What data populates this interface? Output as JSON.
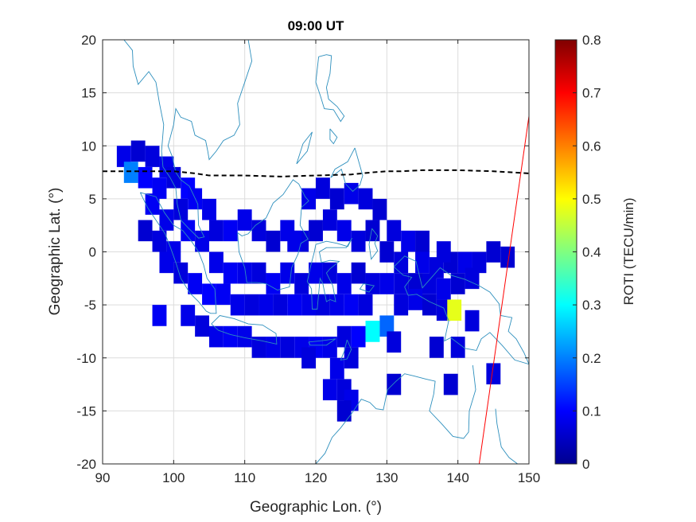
{
  "chart_data": {
    "type": "heatmap",
    "title": "09:00 UT",
    "xlabel": "Geographic Lon. (°)",
    "ylabel": "Geographic Lat. (°)",
    "xlim": [
      90,
      150
    ],
    "ylim": [
      -20,
      20
    ],
    "xticks": [
      "90",
      "100",
      "110",
      "120",
      "130",
      "140",
      "150"
    ],
    "yticks": [
      "-20",
      "-15",
      "-10",
      "-5",
      "0",
      "5",
      "10",
      "15",
      "20"
    ],
    "grid": true,
    "colorbar": {
      "label": "ROTI (TECU/min)",
      "range": [
        0,
        0.8
      ],
      "ticks": [
        "0",
        "0.1",
        "0.2",
        "0.3",
        "0.4",
        "0.5",
        "0.6",
        "0.7",
        "0.8"
      ],
      "colormap": [
        "#00008f",
        "#0000ff",
        "#0080ff",
        "#00ffff",
        "#80ff80",
        "#ffff00",
        "#ff8000",
        "#ff0000",
        "#800000"
      ]
    },
    "magnetic_equator": {
      "style": "dashed",
      "color": "#000000",
      "points": [
        [
          90,
          7.6
        ],
        [
          100,
          7.6
        ],
        [
          103,
          7.4
        ],
        [
          105,
          7.2
        ],
        [
          110,
          7.2
        ],
        [
          115,
          7.1
        ],
        [
          120,
          7.2
        ],
        [
          125,
          7.3
        ],
        [
          128,
          7.5
        ],
        [
          130,
          7.6
        ],
        [
          132,
          7.6
        ],
        [
          135,
          7.7
        ],
        [
          140,
          7.7
        ],
        [
          145,
          7.6
        ],
        [
          150,
          7.4
        ]
      ]
    },
    "red_line": {
      "color": "#ff0000",
      "points": [
        [
          143,
          -20
        ],
        [
          150,
          12.8
        ]
      ]
    },
    "cells": [
      [
        93,
        9,
        0.08
      ],
      [
        95,
        9.5,
        0.06
      ],
      [
        97,
        9,
        0.07
      ],
      [
        99,
        8,
        0.08
      ],
      [
        94,
        7.5,
        0.2
      ],
      [
        96,
        7,
        0.1
      ],
      [
        98,
        6,
        0.09
      ],
      [
        100,
        7,
        0.07
      ],
      [
        102,
        6,
        0.1
      ],
      [
        103,
        5,
        0.09
      ],
      [
        105,
        4,
        0.08
      ],
      [
        101,
        4,
        0.07
      ],
      [
        99,
        3,
        0.08
      ],
      [
        97,
        4.5,
        0.09
      ],
      [
        96,
        2,
        0.06
      ],
      [
        98,
        1,
        0.07
      ],
      [
        100,
        0,
        0.08
      ],
      [
        102,
        2,
        0.09
      ],
      [
        104,
        1,
        0.08
      ],
      [
        106,
        2,
        0.07
      ],
      [
        108,
        2,
        0.09
      ],
      [
        110,
        3,
        0.08
      ],
      [
        112,
        2,
        0.07
      ],
      [
        114,
        1,
        0.06
      ],
      [
        116,
        2,
        0.08
      ],
      [
        118,
        1,
        0.07
      ],
      [
        120,
        2,
        0.06
      ],
      [
        122,
        3,
        0.07
      ],
      [
        124,
        2,
        0.08
      ],
      [
        126,
        1,
        0.07
      ],
      [
        128,
        2,
        0.06
      ],
      [
        119,
        5,
        0.08
      ],
      [
        121,
        6,
        0.07
      ],
      [
        123,
        5,
        0.06
      ],
      [
        125,
        5.5,
        0.08
      ],
      [
        127,
        5,
        0.07
      ],
      [
        129,
        4,
        0.06
      ],
      [
        131,
        2,
        0.07
      ],
      [
        133,
        1,
        0.08
      ],
      [
        130,
        0,
        0.06
      ],
      [
        132,
        -1,
        0.07
      ],
      [
        135,
        -1,
        0.08
      ],
      [
        137,
        -1.5,
        0.07
      ],
      [
        139,
        -1,
        0.06
      ],
      [
        141,
        -1,
        0.08
      ],
      [
        143,
        -1,
        0.07
      ],
      [
        145,
        0,
        0.06
      ],
      [
        135,
        1,
        0.06
      ],
      [
        138,
        0,
        0.07
      ],
      [
        99,
        -1,
        0.08
      ],
      [
        101,
        -2,
        0.07
      ],
      [
        103,
        -3,
        0.09
      ],
      [
        105,
        -4,
        0.1
      ],
      [
        107,
        -4,
        0.09
      ],
      [
        109,
        -5,
        0.08
      ],
      [
        111,
        -5,
        0.07
      ],
      [
        113,
        -5,
        0.08
      ],
      [
        115,
        -5,
        0.07
      ],
      [
        117,
        -5,
        0.09
      ],
      [
        119,
        -5,
        0.08
      ],
      [
        121,
        -5,
        0.07
      ],
      [
        123,
        -5,
        0.08
      ],
      [
        125,
        -5,
        0.09
      ],
      [
        127,
        -5,
        0.07
      ],
      [
        106,
        -1,
        0.08
      ],
      [
        108,
        -2,
        0.09
      ],
      [
        110,
        -2,
        0.08
      ],
      [
        112,
        -2,
        0.07
      ],
      [
        114,
        -3,
        0.09
      ],
      [
        116,
        -2,
        0.08
      ],
      [
        118,
        -3,
        0.07
      ],
      [
        120,
        -2,
        0.08
      ],
      [
        122,
        -2,
        0.07
      ],
      [
        124,
        -3,
        0.08
      ],
      [
        126,
        -2,
        0.06
      ],
      [
        128,
        -3,
        0.07
      ],
      [
        130,
        -3,
        0.08
      ],
      [
        132,
        -3,
        0.07
      ],
      [
        134,
        -3,
        0.06
      ],
      [
        136,
        -3,
        0.07
      ],
      [
        138,
        -3.5,
        0.08
      ],
      [
        140,
        -3,
        0.06
      ],
      [
        142,
        -2.5,
        0.07
      ],
      [
        102,
        -6,
        0.08
      ],
      [
        104,
        -7,
        0.07
      ],
      [
        106,
        -8,
        0.08
      ],
      [
        108,
        -8,
        0.09
      ],
      [
        110,
        -8,
        0.08
      ],
      [
        112,
        -9,
        0.07
      ],
      [
        114,
        -9,
        0.08
      ],
      [
        116,
        -9,
        0.07
      ],
      [
        118,
        -9,
        0.08
      ],
      [
        120,
        -9,
        0.09
      ],
      [
        122,
        -9,
        0.08
      ],
      [
        124,
        -8,
        0.07
      ],
      [
        126,
        -8,
        0.1
      ],
      [
        128,
        -7.5,
        0.3
      ],
      [
        125,
        -10,
        0.07
      ],
      [
        123,
        -11,
        0.08
      ],
      [
        119,
        -10,
        0.07
      ],
      [
        130,
        -7,
        0.18
      ],
      [
        132,
        -5,
        0.07
      ],
      [
        134,
        -4.5,
        0.08
      ],
      [
        136,
        -5,
        0.06
      ],
      [
        138,
        -5.5,
        0.07
      ],
      [
        139.5,
        -5.5,
        0.48
      ],
      [
        142,
        -6.5,
        0.07
      ],
      [
        98,
        -6,
        0.09
      ],
      [
        131,
        -8.5,
        0.07
      ],
      [
        131,
        -12.5,
        0.06
      ],
      [
        122,
        -13,
        0.08
      ],
      [
        124,
        -13,
        0.07
      ],
      [
        125,
        -14,
        0.08
      ],
      [
        124,
        -15,
        0.06
      ],
      [
        137,
        -9,
        0.06
      ],
      [
        140,
        -9,
        0.07
      ],
      [
        139,
        -12.5,
        0.06
      ],
      [
        145,
        -11.5,
        0.07
      ],
      [
        147,
        -0.5,
        0.06
      ],
      [
        117,
        1,
        0.08
      ]
    ]
  },
  "coastlines": [
    [
      [
        110.5,
        20
      ],
      [
        111,
        18
      ],
      [
        110,
        16
      ],
      [
        109,
        14
      ],
      [
        109.3,
        12
      ],
      [
        108.5,
        11
      ],
      [
        107,
        10.5
      ],
      [
        106,
        9.5
      ],
      [
        105,
        8.7
      ],
      [
        104.8,
        9.5
      ],
      [
        104.5,
        10.5
      ],
      [
        103,
        11
      ],
      [
        102.5,
        12.3
      ],
      [
        101,
        12.7
      ],
      [
        100.3,
        13.5
      ],
      [
        100,
        12
      ],
      [
        99.2,
        10
      ],
      [
        99.8,
        9
      ],
      [
        100.3,
        7.5
      ],
      [
        101,
        6.8
      ],
      [
        102.2,
        6.2
      ],
      [
        103.4,
        4.5
      ],
      [
        103.5,
        2.5
      ],
      [
        104.3,
        1.4
      ],
      [
        103.5,
        1.3
      ],
      [
        102,
        2.3
      ],
      [
        101,
        3
      ],
      [
        100.5,
        4.5
      ],
      [
        100.3,
        6
      ],
      [
        99.5,
        7
      ],
      [
        98.5,
        8
      ],
      [
        98.3,
        9.5
      ],
      [
        98.6,
        12
      ],
      [
        98,
        14
      ],
      [
        97.5,
        16
      ],
      [
        96.5,
        17
      ],
      [
        95,
        15.8
      ],
      [
        94.3,
        17.5
      ],
      [
        94.2,
        19
      ],
      [
        93,
        20
      ]
    ],
    [
      [
        95.3,
        5.6
      ],
      [
        97.5,
        5.2
      ],
      [
        98.7,
        3.7
      ],
      [
        100,
        2.5
      ],
      [
        101.3,
        2
      ],
      [
        102.5,
        1
      ],
      [
        103.5,
        0
      ],
      [
        104.2,
        -1.2
      ],
      [
        104.7,
        -2.5
      ],
      [
        105.8,
        -3.5
      ],
      [
        106,
        -5.8
      ],
      [
        105.2,
        -5.8
      ],
      [
        104.6,
        -5.6
      ],
      [
        103.5,
        -4.7
      ],
      [
        102.3,
        -3.9
      ],
      [
        101,
        -2.5
      ],
      [
        100.3,
        -1
      ],
      [
        99.5,
        0.5
      ],
      [
        98.8,
        1.7
      ],
      [
        97.5,
        3
      ],
      [
        96.3,
        4.2
      ],
      [
        95.3,
        5.6
      ]
    ],
    [
      [
        105.3,
        -6.8
      ],
      [
        106.5,
        -6
      ],
      [
        108.5,
        -6.3
      ],
      [
        110.5,
        -6.8
      ],
      [
        112.5,
        -6.9
      ],
      [
        114.4,
        -7.7
      ],
      [
        114.5,
        -8.7
      ],
      [
        112.5,
        -8.4
      ],
      [
        110,
        -8.1
      ],
      [
        108,
        -7.8
      ],
      [
        106.3,
        -7.4
      ],
      [
        105.3,
        -6.8
      ]
    ],
    [
      [
        109,
        1.8
      ],
      [
        109.6,
        1.5
      ],
      [
        110.5,
        1.7
      ],
      [
        111.5,
        2.5
      ],
      [
        113,
        3.2
      ],
      [
        114,
        4.6
      ],
      [
        115.4,
        5.4
      ],
      [
        116.8,
        6.8
      ],
      [
        117.6,
        6.4
      ],
      [
        118.5,
        5.2
      ],
      [
        119,
        4.8
      ],
      [
        118,
        4.2
      ],
      [
        117.8,
        2.5
      ],
      [
        118.9,
        1.2
      ],
      [
        117.9,
        0.8
      ],
      [
        117.5,
        -0.2
      ],
      [
        116.6,
        -1.5
      ],
      [
        116.3,
        -3.3
      ],
      [
        114.6,
        -3.6
      ],
      [
        113,
        -3
      ],
      [
        111.7,
        -2.9
      ],
      [
        110.3,
        -2.9
      ],
      [
        110,
        -1.5
      ],
      [
        109.2,
        0
      ],
      [
        109,
        1.8
      ]
    ],
    [
      [
        120,
        0.7
      ],
      [
        121.5,
        1
      ],
      [
        123,
        0.8
      ],
      [
        124.5,
        0.5
      ],
      [
        125.1,
        1.3
      ],
      [
        124.3,
        0.4
      ],
      [
        122.5,
        0.4
      ],
      [
        121.5,
        0.4
      ],
      [
        120.5,
        0
      ],
      [
        120.8,
        -1
      ],
      [
        122,
        -0.8
      ],
      [
        123.3,
        -0.9
      ],
      [
        122,
        -1.6
      ],
      [
        121.5,
        -2
      ],
      [
        122.4,
        -3.2
      ],
      [
        122.8,
        -4.7
      ],
      [
        122,
        -4.5
      ],
      [
        121.5,
        -4.7
      ],
      [
        121,
        -3
      ],
      [
        120.6,
        -2.5
      ],
      [
        120.2,
        -5.4
      ],
      [
        119.5,
        -5.4
      ],
      [
        119.4,
        -3.5
      ],
      [
        118.8,
        -2.8
      ],
      [
        119.3,
        -1.3
      ],
      [
        119.8,
        0
      ],
      [
        120,
        0.7
      ]
    ],
    [
      [
        131,
        -1.4
      ],
      [
        132.5,
        -0.4
      ],
      [
        134.1,
        -0.9
      ],
      [
        135,
        -3.4
      ],
      [
        137.5,
        -1.5
      ],
      [
        139,
        -2.2
      ],
      [
        141,
        -2.6
      ],
      [
        143,
        -3.2
      ],
      [
        144.5,
        -3.8
      ],
      [
        145.8,
        -4.9
      ],
      [
        146,
        -6
      ],
      [
        147.6,
        -6.2
      ],
      [
        147.1,
        -7.5
      ],
      [
        148.2,
        -8.2
      ],
      [
        149.3,
        -9.5
      ],
      [
        150,
        -10.6
      ],
      [
        148,
        -10.2
      ],
      [
        146.2,
        -8.8
      ],
      [
        144.5,
        -7.6
      ],
      [
        143.3,
        -8.2
      ],
      [
        142.6,
        -9.3
      ],
      [
        141,
        -9.1
      ],
      [
        139,
        -8.1
      ],
      [
        138.1,
        -8.4
      ],
      [
        138.7,
        -6.5
      ],
      [
        138,
        -5.3
      ],
      [
        136,
        -4.7
      ],
      [
        134.2,
        -4
      ],
      [
        133,
        -4.1
      ],
      [
        132.5,
        -3.3
      ],
      [
        133.5,
        -2.4
      ],
      [
        132.3,
        -2.2
      ],
      [
        131.3,
        -1.6
      ],
      [
        131,
        -1.4
      ]
    ],
    [
      [
        142.1,
        -10.7
      ],
      [
        142.5,
        -13
      ],
      [
        141.6,
        -15
      ],
      [
        141.5,
        -17
      ],
      [
        140.8,
        -17.6
      ],
      [
        139.3,
        -17.4
      ],
      [
        137.7,
        -16.2
      ],
      [
        136,
        -15
      ],
      [
        136.6,
        -13.4
      ],
      [
        136.8,
        -12.2
      ],
      [
        135.5,
        -12
      ],
      [
        133.8,
        -11.7
      ],
      [
        132.5,
        -11.5
      ],
      [
        131.3,
        -12.2
      ],
      [
        130.1,
        -13
      ],
      [
        129.5,
        -14.9
      ],
      [
        128.5,
        -14.8
      ],
      [
        127.6,
        -14.2
      ],
      [
        126.4,
        -13.9
      ],
      [
        125.1,
        -15.2
      ],
      [
        123.5,
        -16.6
      ],
      [
        122.3,
        -17.5
      ],
      [
        121.3,
        -19
      ],
      [
        120,
        -20
      ]
    ],
    [
      [
        145.3,
        -14.8
      ],
      [
        145.5,
        -16.2
      ],
      [
        146.1,
        -18.4
      ],
      [
        147.2,
        -19.4
      ],
      [
        148.4,
        -20
      ]
    ],
    [
      [
        120.4,
        18.4
      ],
      [
        121.5,
        18.6
      ],
      [
        122.2,
        18.5
      ],
      [
        122,
        16.8
      ],
      [
        121.5,
        15.5
      ],
      [
        121.8,
        14.4
      ],
      [
        123,
        13.7
      ],
      [
        124,
        12.8
      ],
      [
        123.5,
        12.3
      ],
      [
        122.5,
        13.4
      ],
      [
        121.2,
        13.5
      ],
      [
        120.7,
        14.6
      ],
      [
        120,
        16
      ],
      [
        120.4,
        18.4
      ]
    ],
    [
      [
        122,
        11.6
      ],
      [
        123,
        10.8
      ],
      [
        122.5,
        10.2
      ],
      [
        122,
        10.6
      ],
      [
        122,
        11.6
      ]
    ],
    [
      [
        125.5,
        9.8
      ],
      [
        126.6,
        7.2
      ],
      [
        126.2,
        6.3
      ],
      [
        125.7,
        6
      ],
      [
        125.2,
        5.7
      ],
      [
        124.2,
        6.4
      ],
      [
        123.6,
        7.8
      ],
      [
        122.1,
        7
      ],
      [
        122.7,
        7.8
      ],
      [
        124.5,
        8.5
      ],
      [
        125.5,
        9.8
      ]
    ],
    [
      [
        118.2,
        10.2
      ],
      [
        119.5,
        11.3
      ],
      [
        118.8,
        9.5
      ],
      [
        117.3,
        8.3
      ],
      [
        118.2,
        10.2
      ]
    ],
    [
      [
        124.4,
        -8.3
      ],
      [
        125,
        -9.2
      ],
      [
        124.4,
        -10.1
      ],
      [
        123.5,
        -10.2
      ],
      [
        124,
        -9.4
      ],
      [
        124.4,
        -8.3
      ]
    ],
    [
      [
        119,
        -8.5
      ],
      [
        120.6,
        -8.4
      ],
      [
        122.8,
        -8.2
      ],
      [
        121.5,
        -8.8
      ],
      [
        119.2,
        -8.8
      ],
      [
        119,
        -8.5
      ]
    ],
    [
      [
        126.7,
        -3
      ],
      [
        128.2,
        -3.2
      ],
      [
        127.5,
        -3.8
      ],
      [
        126.2,
        -3.5
      ],
      [
        126.7,
        -3
      ]
    ],
    [
      [
        127.9,
        2.2
      ],
      [
        128.7,
        1.5
      ],
      [
        128.3,
        0.8
      ],
      [
        128.7,
        0.1
      ],
      [
        127.8,
        -0.7
      ],
      [
        127.5,
        0.7
      ],
      [
        127.9,
        2.2
      ]
    ]
  ]
}
